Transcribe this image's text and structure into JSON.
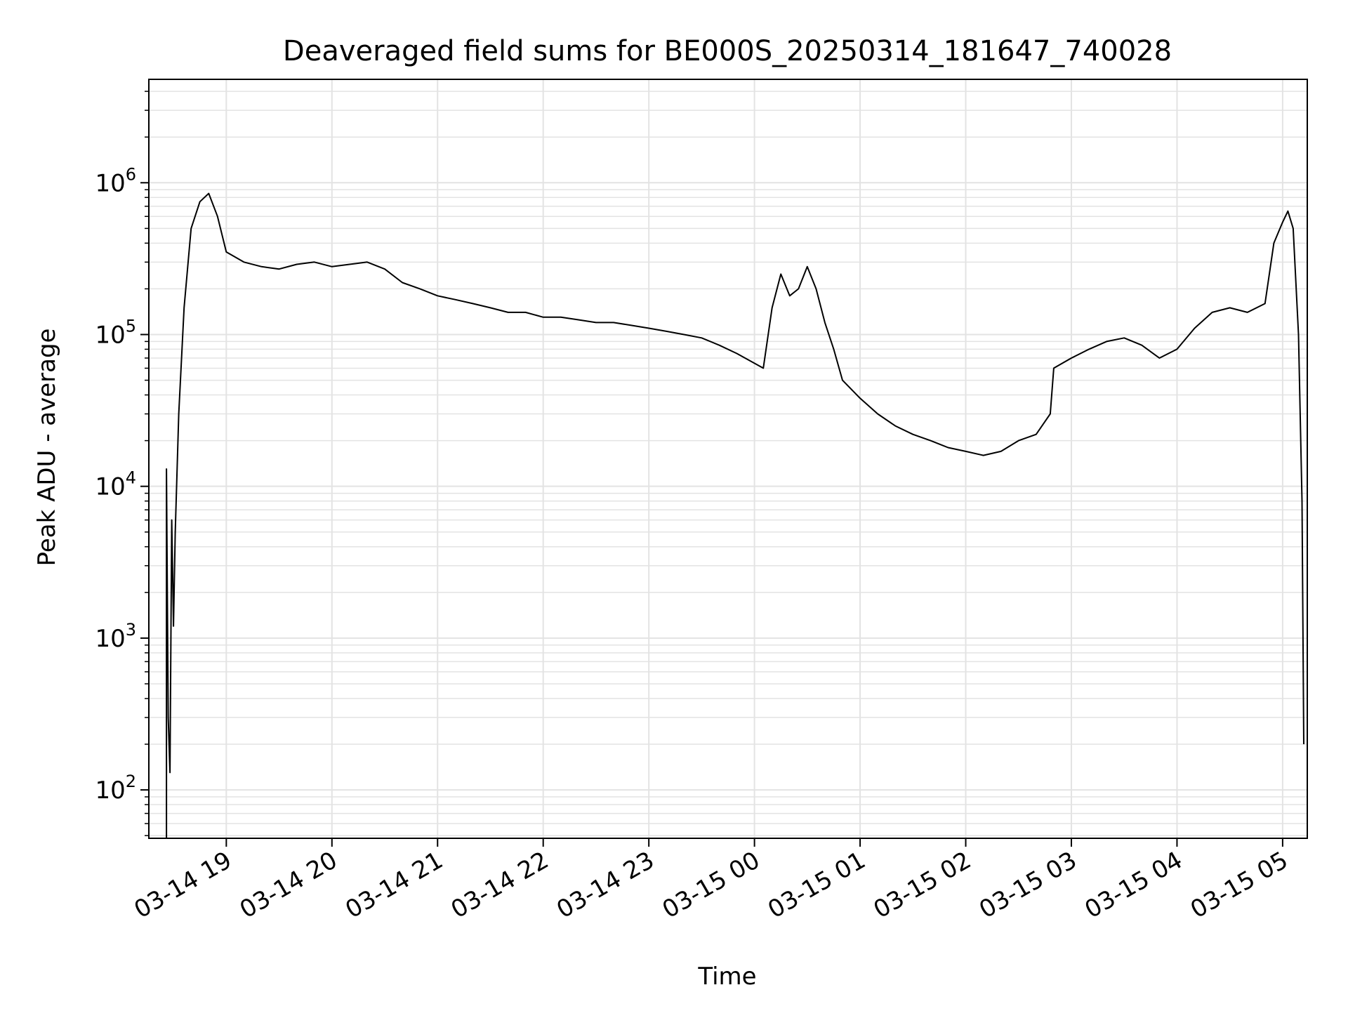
{
  "chart_data": {
    "type": "line",
    "title": "Deaveraged field sums for BE000S_20250314_181647_740028",
    "xlabel": "Time",
    "ylabel": "Peak ADU - average",
    "yscale": "log",
    "ylim": [
      48,
      4800000
    ],
    "xlim": [
      "2025-03-14 18:16",
      "2025-03-15 05:14"
    ],
    "grid": true,
    "colors": {
      "line": "#000000",
      "grid": "#e3e3e3",
      "axes": "#000000",
      "background": "#ffffff"
    },
    "x_ticks": [
      {
        "label": "03-14 19",
        "time": "2025-03-14 19:00"
      },
      {
        "label": "03-14 20",
        "time": "2025-03-14 20:00"
      },
      {
        "label": "03-14 21",
        "time": "2025-03-14 21:00"
      },
      {
        "label": "03-14 22",
        "time": "2025-03-14 22:00"
      },
      {
        "label": "03-14 23",
        "time": "2025-03-14 23:00"
      },
      {
        "label": "03-15 00",
        "time": "2025-03-15 00:00"
      },
      {
        "label": "03-15 01",
        "time": "2025-03-15 01:00"
      },
      {
        "label": "03-15 02",
        "time": "2025-03-15 02:00"
      },
      {
        "label": "03-15 03",
        "time": "2025-03-15 03:00"
      },
      {
        "label": "03-15 04",
        "time": "2025-03-15 04:00"
      },
      {
        "label": "03-15 05",
        "time": "2025-03-15 05:00"
      }
    ],
    "y_ticks": [
      {
        "base": "10",
        "exp": "2",
        "value": 100
      },
      {
        "base": "10",
        "exp": "3",
        "value": 1000
      },
      {
        "base": "10",
        "exp": "4",
        "value": 10000
      },
      {
        "base": "10",
        "exp": "5",
        "value": 100000
      },
      {
        "base": "10",
        "exp": "6",
        "value": 1000000
      }
    ],
    "series": [
      {
        "points": [
          [
            "2025-03-14 18:26",
            48
          ],
          [
            "2025-03-14 18:26",
            13000
          ],
          [
            "2025-03-14 18:27",
            300
          ],
          [
            "2025-03-14 18:28",
            130
          ],
          [
            "2025-03-14 18:29",
            6000
          ],
          [
            "2025-03-14 18:30",
            1200
          ],
          [
            "2025-03-14 18:31",
            5000
          ],
          [
            "2025-03-14 18:33",
            30000
          ],
          [
            "2025-03-14 18:36",
            150000
          ],
          [
            "2025-03-14 18:40",
            500000
          ],
          [
            "2025-03-14 18:45",
            750000
          ],
          [
            "2025-03-14 18:50",
            850000
          ],
          [
            "2025-03-14 18:55",
            600000
          ],
          [
            "2025-03-14 19:00",
            350000
          ],
          [
            "2025-03-14 19:10",
            300000
          ],
          [
            "2025-03-14 19:20",
            280000
          ],
          [
            "2025-03-14 19:30",
            270000
          ],
          [
            "2025-03-14 19:40",
            290000
          ],
          [
            "2025-03-14 19:50",
            300000
          ],
          [
            "2025-03-14 20:00",
            280000
          ],
          [
            "2025-03-14 20:10",
            290000
          ],
          [
            "2025-03-14 20:20",
            300000
          ],
          [
            "2025-03-14 20:30",
            270000
          ],
          [
            "2025-03-14 20:40",
            220000
          ],
          [
            "2025-03-14 20:50",
            200000
          ],
          [
            "2025-03-14 21:00",
            180000
          ],
          [
            "2025-03-14 21:10",
            170000
          ],
          [
            "2025-03-14 21:20",
            160000
          ],
          [
            "2025-03-14 21:30",
            150000
          ],
          [
            "2025-03-14 21:40",
            140000
          ],
          [
            "2025-03-14 21:50",
            140000
          ],
          [
            "2025-03-14 22:00",
            130000
          ],
          [
            "2025-03-14 22:10",
            130000
          ],
          [
            "2025-03-14 22:20",
            125000
          ],
          [
            "2025-03-14 22:30",
            120000
          ],
          [
            "2025-03-14 22:40",
            120000
          ],
          [
            "2025-03-14 22:50",
            115000
          ],
          [
            "2025-03-14 23:00",
            110000
          ],
          [
            "2025-03-14 23:10",
            105000
          ],
          [
            "2025-03-14 23:20",
            100000
          ],
          [
            "2025-03-14 23:30",
            95000
          ],
          [
            "2025-03-14 23:40",
            85000
          ],
          [
            "2025-03-14 23:50",
            75000
          ],
          [
            "2025-03-15 00:05",
            60000
          ],
          [
            "2025-03-15 00:10",
            150000
          ],
          [
            "2025-03-15 00:15",
            250000
          ],
          [
            "2025-03-15 00:20",
            180000
          ],
          [
            "2025-03-15 00:25",
            200000
          ],
          [
            "2025-03-15 00:30",
            280000
          ],
          [
            "2025-03-15 00:35",
            200000
          ],
          [
            "2025-03-15 00:40",
            120000
          ],
          [
            "2025-03-15 00:45",
            80000
          ],
          [
            "2025-03-15 00:50",
            50000
          ],
          [
            "2025-03-15 01:00",
            38000
          ],
          [
            "2025-03-15 01:10",
            30000
          ],
          [
            "2025-03-15 01:20",
            25000
          ],
          [
            "2025-03-15 01:30",
            22000
          ],
          [
            "2025-03-15 01:40",
            20000
          ],
          [
            "2025-03-15 01:50",
            18000
          ],
          [
            "2025-03-15 02:00",
            17000
          ],
          [
            "2025-03-15 02:10",
            16000
          ],
          [
            "2025-03-15 02:20",
            17000
          ],
          [
            "2025-03-15 02:30",
            20000
          ],
          [
            "2025-03-15 02:40",
            22000
          ],
          [
            "2025-03-15 02:48",
            30000
          ],
          [
            "2025-03-15 02:50",
            60000
          ],
          [
            "2025-03-15 03:00",
            70000
          ],
          [
            "2025-03-15 03:10",
            80000
          ],
          [
            "2025-03-15 03:20",
            90000
          ],
          [
            "2025-03-15 03:30",
            95000
          ],
          [
            "2025-03-15 03:40",
            85000
          ],
          [
            "2025-03-15 03:50",
            70000
          ],
          [
            "2025-03-15 04:00",
            80000
          ],
          [
            "2025-03-15 04:10",
            110000
          ],
          [
            "2025-03-15 04:20",
            140000
          ],
          [
            "2025-03-15 04:30",
            150000
          ],
          [
            "2025-03-15 04:40",
            140000
          ],
          [
            "2025-03-15 04:50",
            160000
          ],
          [
            "2025-03-15 04:55",
            400000
          ],
          [
            "2025-03-15 05:00",
            550000
          ],
          [
            "2025-03-15 05:03",
            650000
          ],
          [
            "2025-03-15 05:06",
            500000
          ],
          [
            "2025-03-15 05:09",
            100000
          ],
          [
            "2025-03-15 05:11",
            8000
          ],
          [
            "2025-03-15 05:12",
            200
          ]
        ]
      }
    ]
  }
}
